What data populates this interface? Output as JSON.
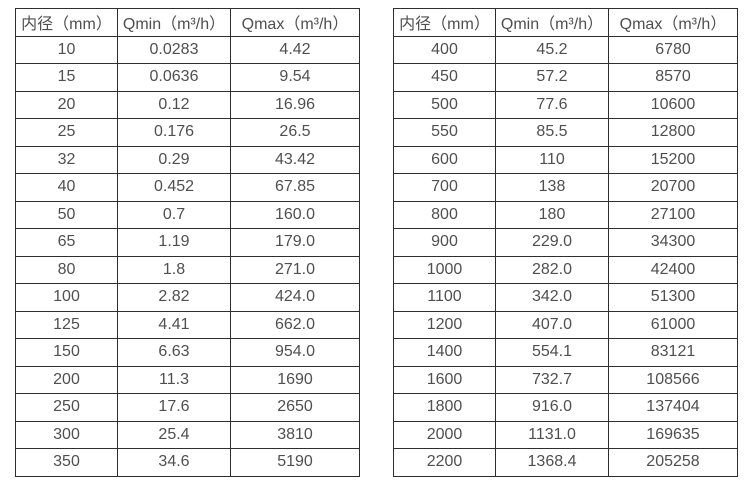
{
  "page": {
    "background": "#ffffff",
    "border_color": "#2e2e2e",
    "text_color": "#4f4f4f"
  },
  "tables": [
    {
      "name": "flow-range-table-small-diameters",
      "headers": [
        "内径（mm）",
        "Qmin（m³/h）",
        "Qmax（m³/h）"
      ],
      "rows": [
        [
          "10",
          "0.0283",
          "4.42"
        ],
        [
          "15",
          "0.0636",
          "9.54"
        ],
        [
          "20",
          "0.12",
          "16.96"
        ],
        [
          "25",
          "0.176",
          "26.5"
        ],
        [
          "32",
          "0.29",
          "43.42"
        ],
        [
          "40",
          "0.452",
          "67.85"
        ],
        [
          "50",
          "0.7",
          "160.0"
        ],
        [
          "65",
          "1.19",
          "179.0"
        ],
        [
          "80",
          "1.8",
          "271.0"
        ],
        [
          "100",
          "2.82",
          "424.0"
        ],
        [
          "125",
          "4.41",
          "662.0"
        ],
        [
          "150",
          "6.63",
          "954.0"
        ],
        [
          "200",
          "11.3",
          "1690"
        ],
        [
          "250",
          "17.6",
          "2650"
        ],
        [
          "300",
          "25.4",
          "3810"
        ],
        [
          "350",
          "34.6",
          "5190"
        ]
      ]
    },
    {
      "name": "flow-range-table-large-diameters",
      "headers": [
        "内径（mm）",
        "Qmin（m³/h）",
        "Qmax（m³/h）"
      ],
      "rows": [
        [
          "400",
          "45.2",
          "6780"
        ],
        [
          "450",
          "57.2",
          "8570"
        ],
        [
          "500",
          "77.6",
          "10600"
        ],
        [
          "550",
          "85.5",
          "12800"
        ],
        [
          "600",
          "110",
          "15200"
        ],
        [
          "700",
          "138",
          "20700"
        ],
        [
          "800",
          "180",
          "27100"
        ],
        [
          "900",
          "229.0",
          "34300"
        ],
        [
          "1000",
          "282.0",
          "42400"
        ],
        [
          "1100",
          "342.0",
          "51300"
        ],
        [
          "1200",
          "407.0",
          "61000"
        ],
        [
          "1400",
          "554.1",
          "83121"
        ],
        [
          "1600",
          "732.7",
          "108566"
        ],
        [
          "1800",
          "916.0",
          "137404"
        ],
        [
          "2000",
          "1131.0",
          "169635"
        ],
        [
          "2200",
          "1368.4",
          "205258"
        ]
      ]
    }
  ]
}
